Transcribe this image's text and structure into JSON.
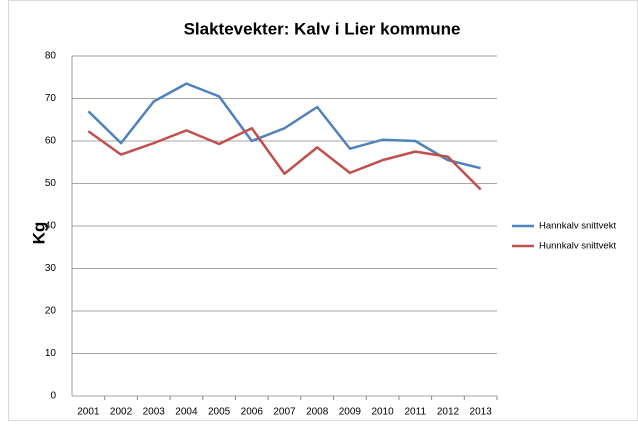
{
  "chart_data": {
    "type": "line",
    "title": "Slaktevekter: Kalv i Lier kommune",
    "y_label": "Kg",
    "categories": [
      "2001",
      "2002",
      "2003",
      "2004",
      "2005",
      "2006",
      "2007",
      "2008",
      "2009",
      "2010",
      "2011",
      "2012",
      "2013"
    ],
    "series": [
      {
        "name": "Hannkalv snittvekt",
        "color": "#4f81bd",
        "values": [
          67,
          59.5,
          69.3,
          73.5,
          70.5,
          60,
          63,
          68,
          58.2,
          60.3,
          60,
          55.5,
          53.6
        ]
      },
      {
        "name": "Hunnkalv snittvekt",
        "color": "#c0504d",
        "values": [
          62.3,
          56.8,
          59.5,
          62.5,
          59.3,
          63,
          52.3,
          58.5,
          52.5,
          55.5,
          57.5,
          56.3,
          48.6
        ]
      }
    ],
    "ylim": [
      0,
      80
    ],
    "yticks": [
      0,
      10,
      20,
      30,
      40,
      50,
      60,
      70,
      80
    ],
    "grid": true,
    "legend": "right"
  }
}
